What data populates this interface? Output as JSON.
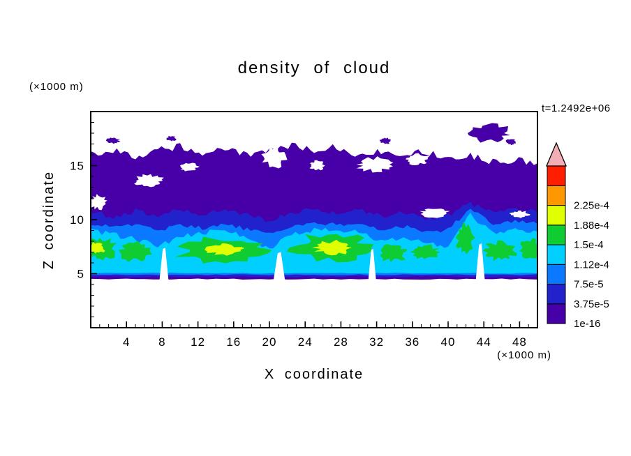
{
  "chart_data": {
    "type": "filled_contour",
    "title": "density of cloud",
    "annotation": "t=1.2492e+06",
    "x_axis": {
      "label": "X coordinate",
      "unit": "(×1000 m)",
      "range": [
        0,
        50
      ],
      "major_ticks": [
        4,
        8,
        12,
        16,
        20,
        24,
        28,
        32,
        36,
        40,
        44,
        48
      ],
      "minor_step": 1
    },
    "z_axis": {
      "label": "Z coordinate",
      "unit": "(×1000 m)",
      "range": [
        0,
        20
      ],
      "major_ticks": [
        5,
        10,
        15
      ],
      "minor_step": 1
    },
    "colorbar": {
      "labels_bottom_to_top": [
        "1e-16",
        "3.75e-5",
        "7.5e-5",
        "1.12e-4",
        "1.5e-4",
        "1.88e-4",
        "2.25e-4"
      ],
      "segment_colors_bottom_to_top": [
        "#4700A8",
        "#2222CC",
        "#0A78FF",
        "#00CFFF",
        "#0FCC33",
        "#E0FF00",
        "#FF9800",
        "#FF1E00"
      ],
      "overflow_cap_color": "#F2AEB4"
    },
    "field": {
      "bands": [
        {
          "name": "level-1e-16",
          "color": "#4700A8",
          "bottom": 4.5,
          "top": [
            [
              0,
              16.0
            ],
            [
              2.5,
              16.5
            ],
            [
              5,
              15.8
            ],
            [
              7.5,
              16.4
            ],
            [
              10,
              16.8
            ],
            [
              12.5,
              16.2
            ],
            [
              15,
              16.6
            ],
            [
              17.5,
              15.9
            ],
            [
              20,
              16.3
            ],
            [
              22.5,
              16.9
            ],
            [
              25,
              16.4
            ],
            [
              27.5,
              16.8
            ],
            [
              30,
              15.9
            ],
            [
              32.5,
              16.4
            ],
            [
              35,
              16.0
            ],
            [
              37.5,
              16.3
            ],
            [
              40,
              15.6
            ],
            [
              42.5,
              15.9
            ],
            [
              45,
              15.3
            ],
            [
              47.5,
              15.6
            ],
            [
              50,
              15.2
            ]
          ]
        },
        {
          "name": "level-3.75e-5",
          "color": "#2222CC",
          "bottom": 4.72,
          "top": [
            [
              0,
              10.7
            ],
            [
              2.5,
              10.3
            ],
            [
              5,
              10.8
            ],
            [
              7.5,
              10.4
            ],
            [
              10,
              10.9
            ],
            [
              12.5,
              10.5
            ],
            [
              15,
              11.0
            ],
            [
              17.5,
              10.4
            ],
            [
              20,
              9.9
            ],
            [
              22.5,
              10.7
            ],
            [
              25,
              11.0
            ],
            [
              27.5,
              10.6
            ],
            [
              30,
              10.9
            ],
            [
              32.5,
              10.3
            ],
            [
              35,
              10.7
            ],
            [
              37.5,
              10.1
            ],
            [
              40,
              10.4
            ],
            [
              42.5,
              11.5
            ],
            [
              45,
              10.6
            ],
            [
              47.5,
              10.9
            ],
            [
              50,
              10.7
            ]
          ]
        },
        {
          "name": "level-7.5e-5",
          "color": "#0A78FF",
          "bottom": 4.9,
          "top": [
            [
              0,
              9.7
            ],
            [
              2.5,
              9.3
            ],
            [
              5,
              9.6
            ],
            [
              7.5,
              9.0
            ],
            [
              10,
              9.5
            ],
            [
              12.5,
              9.2
            ],
            [
              15,
              9.7
            ],
            [
              17.5,
              9.1
            ],
            [
              20,
              8.6
            ],
            [
              22.5,
              9.4
            ],
            [
              25,
              9.8
            ],
            [
              27.5,
              9.5
            ],
            [
              30,
              9.7
            ],
            [
              32.5,
              9.0
            ],
            [
              35,
              9.4
            ],
            [
              37.5,
              8.8
            ],
            [
              40,
              9.1
            ],
            [
              42.5,
              11.0
            ],
            [
              45,
              9.5
            ],
            [
              47.5,
              9.8
            ],
            [
              50,
              9.6
            ]
          ]
        },
        {
          "name": "level-1.12e-4",
          "color": "#00CFFF",
          "bottom": 5.05,
          "top": [
            [
              0,
              9.0
            ],
            [
              2.5,
              8.6
            ],
            [
              5,
              8.2
            ],
            [
              7.5,
              7.6
            ],
            [
              10,
              8.4
            ],
            [
              12.5,
              8.8
            ],
            [
              15,
              8.9
            ],
            [
              17.5,
              8.4
            ],
            [
              20,
              7.3
            ],
            [
              22.5,
              8.6
            ],
            [
              25,
              9.0
            ],
            [
              27.5,
              9.1
            ],
            [
              30,
              8.8
            ],
            [
              32.5,
              8.0
            ],
            [
              35,
              8.3
            ],
            [
              37.5,
              7.8
            ],
            [
              40,
              7.5
            ],
            [
              42.5,
              10.5
            ],
            [
              45,
              8.7
            ],
            [
              47.5,
              9.0
            ],
            [
              50,
              8.9
            ]
          ]
        }
      ],
      "patches": [
        {
          "name": "level-1.5e-4",
          "color": "#0FCC33",
          "ellipses": [
            [
              1.2,
              7.3,
              1.6,
              1.0
            ],
            [
              5.0,
              7.0,
              1.8,
              0.8
            ],
            [
              14.5,
              7.2,
              4.5,
              1.1
            ],
            [
              27.0,
              7.4,
              4.2,
              1.2
            ],
            [
              33.8,
              6.9,
              1.5,
              0.7
            ],
            [
              37.5,
              7.0,
              1.4,
              0.6
            ],
            [
              41.9,
              8.3,
              0.9,
              1.2
            ],
            [
              45.8,
              7.1,
              1.7,
              0.8
            ],
            [
              49.3,
              7.3,
              1.2,
              0.8
            ]
          ]
        },
        {
          "name": "level-1.88e-4",
          "color": "#E0FF00",
          "ellipses": [
            [
              0.6,
              7.4,
              0.9,
              0.5
            ],
            [
              15.0,
              7.2,
              1.8,
              0.5
            ],
            [
              27.2,
              7.4,
              1.9,
              0.6
            ]
          ]
        }
      ],
      "white_slits": [
        [
          8.2,
          7.4,
          0.35
        ],
        [
          21.1,
          7.0,
          0.45
        ],
        [
          31.5,
          7.3,
          0.3
        ],
        [
          43.6,
          7.8,
          0.35
        ]
      ],
      "white_holes": [
        [
          6.5,
          13.6,
          1.5,
          0.5
        ],
        [
          20.5,
          15.8,
          1.2,
          0.9
        ],
        [
          31.8,
          15.1,
          1.8,
          0.6
        ],
        [
          36.5,
          15.6,
          1.3,
          0.5
        ],
        [
          0.8,
          11.6,
          0.9,
          0.6
        ],
        [
          25.4,
          15.0,
          0.8,
          0.4
        ],
        [
          11.0,
          14.9,
          1.0,
          0.35
        ],
        [
          38.5,
          10.6,
          1.6,
          0.35
        ],
        [
          48.0,
          10.5,
          1.0,
          0.3
        ]
      ],
      "detached_blobs": [
        [
          44.6,
          18.0,
          2.2,
          0.75
        ],
        [
          47.0,
          17.2,
          0.5,
          0.25
        ],
        [
          2.5,
          17.3,
          0.7,
          0.25
        ],
        [
          9.0,
          17.5,
          0.5,
          0.2
        ],
        [
          33.0,
          17.3,
          0.6,
          0.25
        ]
      ]
    }
  }
}
